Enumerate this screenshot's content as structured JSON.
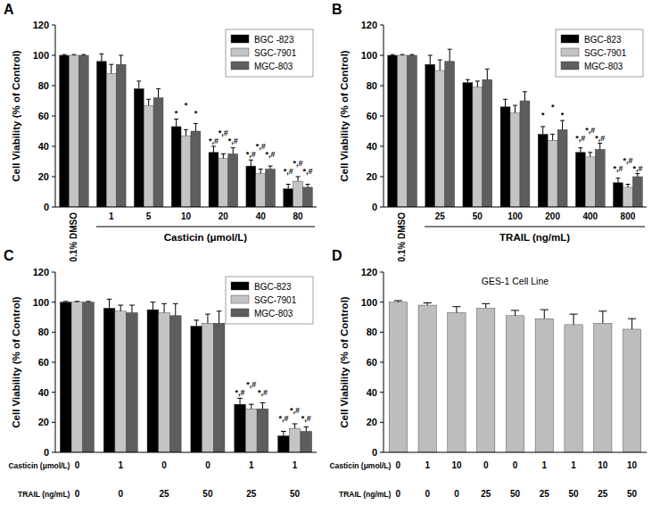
{
  "chart_data": [
    {
      "panel": "A",
      "type": "bar",
      "ylabel": "Cell Viability (% of Control)",
      "xlabel": "Casticin (μmol/L)",
      "categories": [
        "0.1% DMSO",
        "1",
        "5",
        "10",
        "20",
        "40",
        "80"
      ],
      "ylim": [
        0,
        120
      ],
      "yticks": [
        0,
        20,
        40,
        60,
        80,
        100,
        120
      ],
      "legend": "top-right",
      "series": [
        {
          "name": "BGC -823",
          "color": "#000000",
          "values": [
            100,
            96,
            78,
            53,
            36,
            27,
            12
          ],
          "errors": [
            0.5,
            5,
            5,
            5,
            4,
            4,
            3
          ],
          "annotations": [
            null,
            null,
            null,
            "*",
            "*,#",
            "*,#",
            "*,#"
          ]
        },
        {
          "name": "SGC-7901",
          "color": "#c4c4c4",
          "values": [
            100,
            88,
            67,
            47,
            32,
            22,
            17
          ],
          "errors": [
            0.5,
            6,
            4,
            4,
            3,
            3,
            3
          ],
          "annotations": [
            null,
            null,
            null,
            "*",
            "*,#",
            "*,#",
            "*,#"
          ]
        },
        {
          "name": "MGC-803",
          "color": "#5e5e5e",
          "values": [
            100,
            94,
            72,
            50,
            35,
            25,
            13
          ],
          "errors": [
            0.5,
            6,
            6,
            5,
            4,
            2,
            2
          ],
          "annotations": [
            null,
            null,
            null,
            "*",
            "*,#",
            "*,#",
            "*,#"
          ]
        }
      ]
    },
    {
      "panel": "B",
      "type": "bar",
      "ylabel": "Cell Viability (% of Control)",
      "xlabel": "TRAIL (ng/mL)",
      "categories": [
        "0.1% DMSO",
        "25",
        "50",
        "100",
        "200",
        "400",
        "800"
      ],
      "ylim": [
        0,
        120
      ],
      "yticks": [
        0,
        20,
        40,
        60,
        80,
        100,
        120
      ],
      "legend": "top-right",
      "series": [
        {
          "name": "BGC-823",
          "color": "#000000",
          "values": [
            100,
            94,
            82,
            66,
            48,
            36,
            16
          ],
          "errors": [
            0.5,
            6,
            2,
            5,
            5,
            3,
            3
          ],
          "annotations": [
            null,
            null,
            null,
            null,
            "*",
            "*,#",
            "*,#"
          ]
        },
        {
          "name": "SGC-7901",
          "color": "#c4c4c4",
          "values": [
            100,
            90,
            79,
            62,
            44,
            33,
            13
          ],
          "errors": [
            0.5,
            7,
            4,
            5,
            4,
            3,
            2
          ],
          "annotations": [
            null,
            null,
            null,
            null,
            "*",
            "*,#",
            "*,#"
          ]
        },
        {
          "name": "MGC-803",
          "color": "#5e5e5e",
          "values": [
            100,
            96,
            84,
            70,
            51,
            38,
            20
          ],
          "errors": [
            0.5,
            8,
            7,
            6,
            6,
            4,
            2
          ],
          "annotations": [
            null,
            null,
            null,
            null,
            "*",
            "*,#",
            "*,#"
          ]
        }
      ]
    },
    {
      "panel": "C",
      "type": "bar",
      "ylabel": "Cell Viability (% of Control)",
      "category_labels": [
        "Casticin (μmol/L)",
        "TRAIL (ng/mL)"
      ],
      "categories": [
        [
          "0",
          "0"
        ],
        [
          "1",
          "0"
        ],
        [
          "0",
          "25"
        ],
        [
          "0",
          "50"
        ],
        [
          "1",
          "25"
        ],
        [
          "1",
          "50"
        ]
      ],
      "ylim": [
        0,
        120
      ],
      "yticks": [
        0,
        20,
        40,
        60,
        80,
        100,
        120
      ],
      "legend": "top-right",
      "series": [
        {
          "name": "BGC-823",
          "color": "#000000",
          "values": [
            100,
            96,
            95,
            84,
            32,
            11
          ],
          "errors": [
            0.5,
            6,
            5,
            4,
            4,
            3
          ],
          "annotations": [
            null,
            null,
            null,
            null,
            "*,#",
            "*,#"
          ]
        },
        {
          "name": "SGC-7901",
          "color": "#c4c4c4",
          "values": [
            100,
            94,
            93,
            86,
            29,
            16
          ],
          "errors": [
            0.5,
            4,
            6,
            6,
            3,
            3
          ],
          "annotations": [
            null,
            null,
            null,
            null,
            "*,#",
            "*,#"
          ]
        },
        {
          "name": "MGC-803",
          "color": "#5e5e5e",
          "values": [
            100,
            93,
            91,
            86,
            29,
            14
          ],
          "errors": [
            0.5,
            5,
            8,
            8,
            4,
            3
          ],
          "annotations": [
            null,
            null,
            null,
            null,
            "*,#",
            "*,#"
          ]
        }
      ]
    },
    {
      "panel": "D",
      "type": "bar",
      "title": "GES-1 Cell Line",
      "ylabel": "Cell Viability (% of Control)",
      "category_labels": [
        "Casticin (μmol/L)",
        "TRAIL (ng/mL)"
      ],
      "categories": [
        [
          "0",
          "0"
        ],
        [
          "1",
          "0"
        ],
        [
          "10",
          "0"
        ],
        [
          "0",
          "25"
        ],
        [
          "0",
          "50"
        ],
        [
          "1",
          "25"
        ],
        [
          "1",
          "50"
        ],
        [
          "10",
          "25"
        ],
        [
          "10",
          "50"
        ]
      ],
      "ylim": [
        0,
        120
      ],
      "yticks": [
        0,
        20,
        40,
        60,
        80,
        100,
        120
      ],
      "series": [
        {
          "color": "#bdbdbd",
          "values": [
            100,
            98,
            93,
            96,
            91,
            89,
            85,
            86,
            82
          ],
          "errors": [
            1,
            1.5,
            4,
            3,
            3.5,
            6,
            7,
            8,
            7
          ]
        }
      ]
    }
  ]
}
